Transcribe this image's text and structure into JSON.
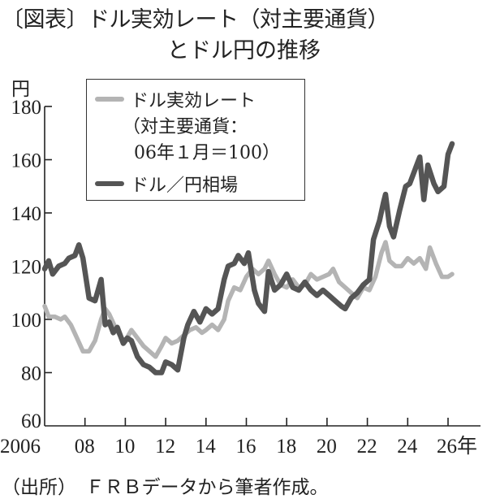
{
  "header": {
    "title_line1": "〔図表〕ドル実効レート（対主要通貨）",
    "title_line2": "とドル円の推移"
  },
  "axes": {
    "y_unit": "円",
    "y_ticks": [
      "180",
      "160",
      "140",
      "120",
      "100",
      "80",
      "60"
    ],
    "x_ticks": [
      "2006",
      "08",
      "10",
      "12",
      "14",
      "16",
      "18",
      "20",
      "22",
      "24",
      "26年"
    ]
  },
  "legend": {
    "series1_line1": "ドル実効レート",
    "series1_line2": "（対主要通貨：",
    "series1_line3": "06年１月＝100）",
    "series2": "ドル／円相場"
  },
  "footer": {
    "source": "（出所）　ＦＲＢデータから筆者作成。"
  },
  "colors": {
    "effective_rate": "#b4b4b4",
    "usdjpy": "#555555",
    "axis": "#222222"
  },
  "chart_data": {
    "type": "line",
    "title": "ドル実効レート（対主要通貨）とドル円の推移",
    "xlabel": "年",
    "ylabel": "円",
    "ylim": [
      60,
      180
    ],
    "xlim": [
      2006,
      2026.3
    ],
    "yticks": [
      60,
      80,
      100,
      120,
      140,
      160,
      180
    ],
    "xticks": [
      2006,
      2008,
      2010,
      2012,
      2014,
      2016,
      2018,
      2020,
      2022,
      2024,
      2026
    ],
    "grid": false,
    "legend_position": "upper-left-inset",
    "series": [
      {
        "name": "ドル実効レート（対主要通貨：06年1月＝100）",
        "x": [
          2006.0,
          2006.2,
          2006.5,
          2006.8,
          2007.0,
          2007.3,
          2007.6,
          2007.9,
          2008.2,
          2008.5,
          2008.8,
          2009.0,
          2009.2,
          2009.5,
          2009.8,
          2010.0,
          2010.3,
          2010.6,
          2010.9,
          2011.2,
          2011.5,
          2011.8,
          2012.0,
          2012.3,
          2012.6,
          2012.9,
          2013.2,
          2013.5,
          2013.8,
          2014.0,
          2014.3,
          2014.6,
          2014.9,
          2015.1,
          2015.4,
          2015.7,
          2016.0,
          2016.3,
          2016.6,
          2016.9,
          2017.1,
          2017.4,
          2017.7,
          2018.0,
          2018.3,
          2018.6,
          2018.9,
          2019.2,
          2019.5,
          2019.8,
          2020.1,
          2020.3,
          2020.6,
          2020.9,
          2021.2,
          2021.5,
          2021.8,
          2022.1,
          2022.4,
          2022.7,
          2022.9,
          2023.1,
          2023.4,
          2023.7,
          2024.0,
          2024.3,
          2024.6,
          2024.9,
          2025.1,
          2025.4,
          2025.7,
          2026.0,
          2026.2
        ],
        "values": [
          105,
          101,
          101,
          100,
          101,
          98,
          93,
          88,
          88,
          92,
          100,
          104,
          102,
          97,
          93,
          92,
          96,
          93,
          90,
          88,
          86,
          90,
          93,
          91,
          92,
          94,
          96,
          97,
          95,
          96,
          98,
          96,
          100,
          107,
          112,
          111,
          116,
          119,
          117,
          119,
          122,
          117,
          113,
          112,
          115,
          112,
          113,
          117,
          115,
          116,
          117,
          119,
          114,
          112,
          110,
          108,
          112,
          111,
          116,
          125,
          129,
          122,
          120,
          120,
          123,
          121,
          123,
          119,
          127,
          121,
          116,
          116,
          117
        ]
      },
      {
        "name": "ドル／円相場",
        "x": [
          2006.0,
          2006.2,
          2006.4,
          2006.7,
          2007.0,
          2007.2,
          2007.5,
          2007.7,
          2007.9,
          2008.2,
          2008.5,
          2008.8,
          2009.0,
          2009.2,
          2009.4,
          2009.6,
          2009.9,
          2010.1,
          2010.3,
          2010.6,
          2010.9,
          2011.2,
          2011.5,
          2011.8,
          2012.0,
          2012.3,
          2012.6,
          2012.9,
          2013.1,
          2013.4,
          2013.7,
          2014.0,
          2014.3,
          2014.6,
          2014.9,
          2015.1,
          2015.4,
          2015.6,
          2015.9,
          2016.1,
          2016.4,
          2016.6,
          2016.9,
          2017.1,
          2017.4,
          2017.7,
          2018.0,
          2018.3,
          2018.6,
          2018.9,
          2019.2,
          2019.5,
          2019.8,
          2020.1,
          2020.4,
          2020.7,
          2020.9,
          2021.2,
          2021.5,
          2021.8,
          2022.1,
          2022.3,
          2022.6,
          2022.8,
          2022.9,
          2023.1,
          2023.3,
          2023.6,
          2023.9,
          2024.1,
          2024.4,
          2024.6,
          2024.8,
          2025.0,
          2025.3,
          2025.5,
          2025.8,
          2026.0,
          2026.2
        ],
        "values": [
          119,
          122,
          117,
          120,
          121,
          123,
          124,
          128,
          123,
          108,
          107,
          115,
          98,
          99,
          95,
          97,
          91,
          93,
          92,
          86,
          83,
          82,
          80,
          80,
          84,
          83,
          81,
          93,
          98,
          103,
          99,
          104,
          102,
          104,
          115,
          120,
          121,
          124,
          121,
          125,
          111,
          106,
          103,
          118,
          111,
          113,
          117,
          112,
          111,
          114,
          111,
          109,
          111,
          109,
          107,
          105,
          104,
          108,
          110,
          113,
          115,
          130,
          137,
          144,
          147,
          135,
          131,
          141,
          150,
          151,
          157,
          161,
          145,
          158,
          151,
          148,
          150,
          162,
          166
        ]
      }
    ]
  }
}
